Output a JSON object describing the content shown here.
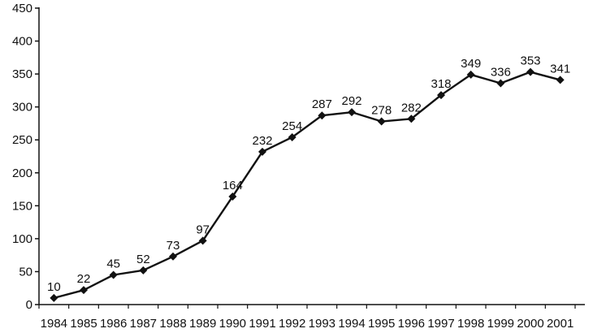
{
  "chart_data": {
    "type": "line",
    "title": "",
    "xlabel": "",
    "ylabel": "",
    "x": [
      "1984",
      "1985",
      "1986",
      "1987",
      "1988",
      "1989",
      "1990",
      "1991",
      "1992",
      "1993",
      "1994",
      "1995",
      "1996",
      "1997",
      "1998",
      "1999",
      "2000",
      "2001"
    ],
    "series": [
      {
        "values": [
          10,
          22,
          45,
          52,
          73,
          97,
          164,
          232,
          254,
          287,
          292,
          278,
          282,
          318,
          349,
          336,
          353,
          341
        ],
        "color": "#111111",
        "marker": "diamond"
      }
    ],
    "data_labels": [
      "10",
      "22",
      "45",
      "52",
      "73",
      "97",
      "164",
      "232",
      "254",
      "287",
      "292",
      "278",
      "282",
      "318",
      "349",
      "336",
      "353",
      "341"
    ],
    "ylim": [
      0,
      450
    ],
    "yticks": [
      "0",
      "50",
      "100",
      "150",
      "200",
      "250",
      "300",
      "350",
      "400",
      "450"
    ],
    "grid": false,
    "legend": "none"
  }
}
